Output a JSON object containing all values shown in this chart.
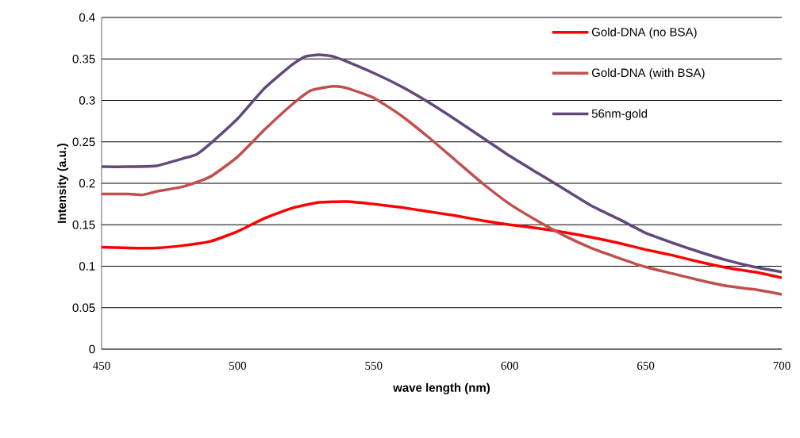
{
  "chart_data": {
    "type": "line",
    "xlabel": "wave length (nm)",
    "ylabel": "Intensity (a.u.)",
    "xlim": [
      450,
      700
    ],
    "xticks": [
      450,
      500,
      550,
      600,
      650,
      700
    ],
    "ylim": [
      0,
      0.4
    ],
    "yticks": [
      0,
      0.05,
      0.1,
      0.15,
      0.2,
      0.25,
      0.3,
      0.35,
      0.4
    ],
    "grid": "y",
    "legend": "top right",
    "marker": "none",
    "line_style": "solid",
    "series": [
      {
        "name": "Gold-DNA (no BSA)",
        "color": "#ff0000",
        "x": [
          450,
          460,
          470,
          480,
          490,
          500,
          510,
          520,
          530,
          540,
          550,
          560,
          570,
          580,
          590,
          600,
          610,
          620,
          630,
          640,
          650,
          660,
          670,
          680,
          690,
          700
        ],
        "values": [
          0.123,
          0.122,
          0.122,
          0.125,
          0.13,
          0.142,
          0.158,
          0.17,
          0.177,
          0.178,
          0.175,
          0.171,
          0.166,
          0.161,
          0.155,
          0.15,
          0.146,
          0.141,
          0.135,
          0.128,
          0.12,
          0.113,
          0.105,
          0.098,
          0.093,
          0.086
        ]
      },
      {
        "name": "Gold-DNA (with BSA)",
        "color": "#c0504d",
        "x": [
          450,
          460,
          465,
          470,
          480,
          490,
          500,
          510,
          520,
          527,
          535,
          540,
          550,
          560,
          570,
          580,
          590,
          600,
          610,
          620,
          630,
          640,
          650,
          660,
          670,
          680,
          690,
          700
        ],
        "values": [
          0.187,
          0.187,
          0.186,
          0.19,
          0.196,
          0.208,
          0.232,
          0.265,
          0.295,
          0.312,
          0.317,
          0.315,
          0.303,
          0.282,
          0.256,
          0.228,
          0.2,
          0.175,
          0.155,
          0.137,
          0.122,
          0.11,
          0.099,
          0.091,
          0.083,
          0.076,
          0.072,
          0.066
        ]
      },
      {
        "name": "56nm-gold",
        "color": "#604a7b",
        "x": [
          450,
          460,
          470,
          480,
          485,
          490,
          500,
          510,
          520,
          525,
          530,
          535,
          540,
          550,
          560,
          570,
          580,
          590,
          600,
          610,
          620,
          630,
          640,
          650,
          660,
          670,
          680,
          690,
          700
        ],
        "values": [
          0.22,
          0.22,
          0.221,
          0.23,
          0.235,
          0.248,
          0.278,
          0.315,
          0.343,
          0.353,
          0.355,
          0.353,
          0.347,
          0.333,
          0.317,
          0.298,
          0.277,
          0.255,
          0.233,
          0.213,
          0.193,
          0.173,
          0.157,
          0.14,
          0.128,
          0.117,
          0.107,
          0.099,
          0.093
        ]
      }
    ]
  }
}
